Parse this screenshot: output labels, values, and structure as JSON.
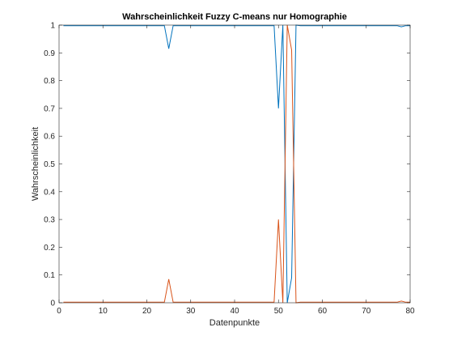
{
  "chart_data": {
    "type": "line",
    "title": "Wahrscheinlichkeit Fuzzy C-means nur Homographie",
    "xlabel": "Datenpunkte",
    "ylabel": "Wahrscheinlichkeit",
    "xlim": [
      0,
      80
    ],
    "ylim": [
      0,
      1
    ],
    "xticks": [
      0,
      10,
      20,
      30,
      40,
      50,
      60,
      70,
      80
    ],
    "yticks": [
      0,
      0.1,
      0.2,
      0.3,
      0.4,
      0.5,
      0.6,
      0.7,
      0.8,
      0.9,
      1
    ],
    "grid": false,
    "legend": "none",
    "series": [
      {
        "color": "#0072BD",
        "x": [
          1,
          2,
          3,
          4,
          5,
          6,
          7,
          8,
          9,
          10,
          11,
          12,
          13,
          14,
          15,
          16,
          17,
          18,
          19,
          20,
          21,
          22,
          23,
          24,
          25,
          26,
          27,
          28,
          29,
          30,
          31,
          32,
          33,
          34,
          35,
          36,
          37,
          38,
          39,
          40,
          41,
          42,
          43,
          44,
          45,
          46,
          47,
          48,
          49,
          50,
          51,
          52,
          53,
          54,
          55,
          56,
          57,
          58,
          59,
          60,
          61,
          62,
          63,
          64,
          65,
          66,
          67,
          68,
          69,
          70,
          71,
          72,
          73,
          74,
          75,
          76,
          77,
          78,
          79,
          80
        ],
        "y": [
          0.998,
          0.998,
          0.998,
          0.998,
          0.998,
          0.998,
          0.998,
          0.998,
          0.998,
          0.998,
          0.998,
          0.998,
          0.998,
          0.998,
          0.998,
          0.998,
          0.998,
          0.998,
          0.998,
          0.998,
          0.998,
          0.998,
          0.998,
          0.998,
          0.915,
          0.998,
          0.998,
          0.998,
          0.998,
          0.998,
          0.998,
          0.998,
          0.998,
          0.998,
          0.998,
          0.998,
          0.998,
          0.998,
          0.998,
          0.998,
          0.998,
          0.998,
          0.998,
          0.998,
          0.998,
          0.998,
          0.998,
          0.998,
          0.998,
          0.7,
          1.0,
          0.0,
          0.09,
          1.0,
          0.998,
          0.998,
          0.998,
          0.998,
          0.998,
          0.998,
          0.998,
          0.998,
          0.998,
          0.998,
          0.998,
          0.998,
          0.998,
          0.998,
          0.998,
          0.998,
          0.998,
          0.998,
          0.998,
          0.998,
          0.998,
          0.998,
          0.998,
          0.994,
          0.998,
          0.998
        ]
      },
      {
        "color": "#D95319",
        "x": [
          1,
          2,
          3,
          4,
          5,
          6,
          7,
          8,
          9,
          10,
          11,
          12,
          13,
          14,
          15,
          16,
          17,
          18,
          19,
          20,
          21,
          22,
          23,
          24,
          25,
          26,
          27,
          28,
          29,
          30,
          31,
          32,
          33,
          34,
          35,
          36,
          37,
          38,
          39,
          40,
          41,
          42,
          43,
          44,
          45,
          46,
          47,
          48,
          49,
          50,
          51,
          52,
          53,
          54,
          55,
          56,
          57,
          58,
          59,
          60,
          61,
          62,
          63,
          64,
          65,
          66,
          67,
          68,
          69,
          70,
          71,
          72,
          73,
          74,
          75,
          76,
          77,
          78,
          79,
          80
        ],
        "y": [
          0.002,
          0.002,
          0.002,
          0.002,
          0.002,
          0.002,
          0.002,
          0.002,
          0.002,
          0.002,
          0.002,
          0.002,
          0.002,
          0.002,
          0.002,
          0.002,
          0.002,
          0.002,
          0.002,
          0.002,
          0.002,
          0.002,
          0.002,
          0.002,
          0.085,
          0.002,
          0.002,
          0.002,
          0.002,
          0.002,
          0.002,
          0.002,
          0.002,
          0.002,
          0.002,
          0.002,
          0.002,
          0.002,
          0.002,
          0.002,
          0.002,
          0.002,
          0.002,
          0.002,
          0.002,
          0.002,
          0.002,
          0.002,
          0.002,
          0.3,
          0.0,
          1.0,
          0.91,
          0.0,
          0.002,
          0.002,
          0.002,
          0.002,
          0.002,
          0.002,
          0.002,
          0.002,
          0.002,
          0.002,
          0.002,
          0.002,
          0.002,
          0.002,
          0.002,
          0.002,
          0.002,
          0.002,
          0.002,
          0.002,
          0.002,
          0.002,
          0.002,
          0.006,
          0.002,
          0.002
        ]
      }
    ]
  }
}
